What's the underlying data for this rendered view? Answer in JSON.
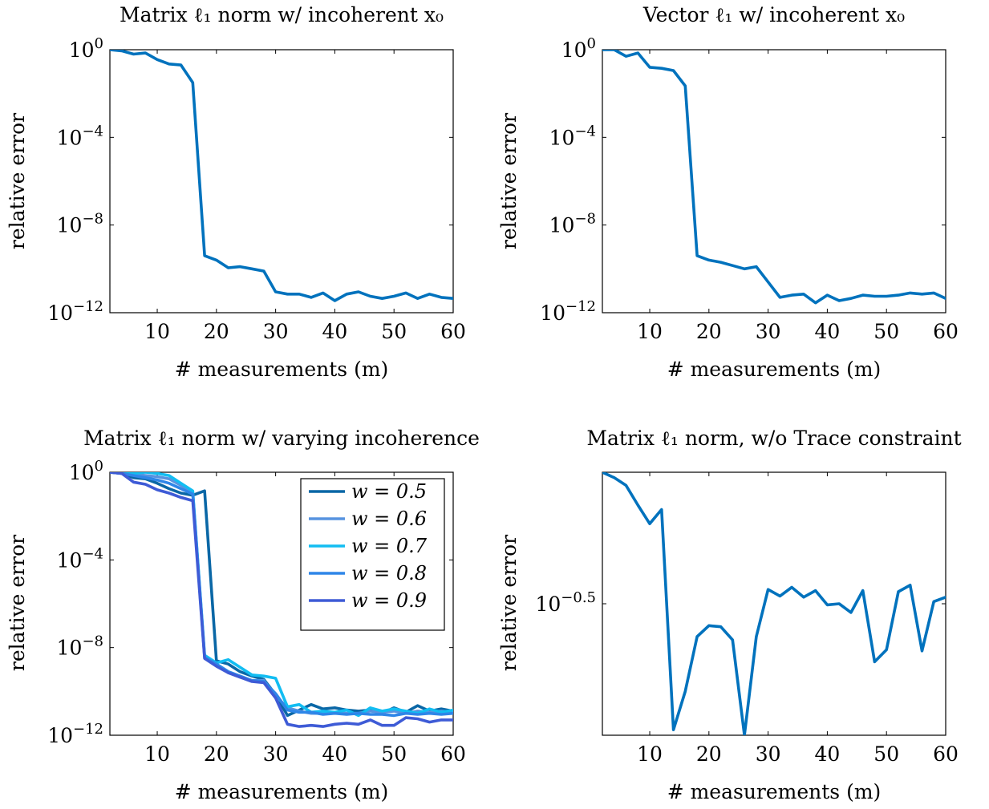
{
  "chart_data": [
    {
      "type": "line",
      "title": "Matrix ℓ₁ norm w/ incoherent x₀",
      "xlabel": "# measurements (m)",
      "ylabel": "relative error",
      "xlim": [
        2,
        60
      ],
      "ylim_log10": [
        -12,
        0
      ],
      "yscale": "log",
      "x_ticks": [
        10,
        20,
        30,
        40,
        50,
        60
      ],
      "y_ticks": [
        {
          "exp": 0,
          "label": "10^0"
        },
        {
          "exp": -4,
          "label": "10^-4"
        },
        {
          "exp": -8,
          "label": "10^-8"
        },
        {
          "exp": -12,
          "label": "10^-12"
        }
      ],
      "grid": false,
      "series": [
        {
          "color": "#0072BD",
          "x": [
            2,
            4,
            6,
            8,
            10,
            12,
            14,
            16,
            18,
            20,
            22,
            24,
            26,
            28,
            30,
            32,
            34,
            36,
            38,
            40,
            42,
            44,
            46,
            48,
            50,
            52,
            54,
            56,
            58,
            60
          ],
          "log10_y": [
            0,
            -0.05,
            -0.2,
            -0.15,
            -0.45,
            -0.65,
            -0.7,
            -1.5,
            -9.4,
            -9.6,
            -9.95,
            -9.9,
            -10.0,
            -10.1,
            -11.05,
            -11.15,
            -11.15,
            -11.3,
            -11.1,
            -11.45,
            -11.15,
            -11.05,
            -11.25,
            -11.35,
            -11.25,
            -11.1,
            -11.35,
            -11.15,
            -11.3,
            -11.35
          ]
        }
      ]
    },
    {
      "type": "line",
      "title": "Vector ℓ₁ w/ incoherent x₀",
      "xlabel": "# measurements (m)",
      "ylabel": "relative error",
      "xlim": [
        2,
        60
      ],
      "ylim_log10": [
        -12,
        0
      ],
      "yscale": "log",
      "x_ticks": [
        10,
        20,
        30,
        40,
        50,
        60
      ],
      "y_ticks": [
        {
          "exp": 0,
          "label": "10^0"
        },
        {
          "exp": -4,
          "label": "10^-4"
        },
        {
          "exp": -8,
          "label": "10^-8"
        },
        {
          "exp": -12,
          "label": "10^-12"
        }
      ],
      "grid": false,
      "series": [
        {
          "color": "#0072BD",
          "x": [
            2,
            4,
            6,
            8,
            10,
            12,
            14,
            16,
            18,
            20,
            22,
            24,
            26,
            28,
            30,
            32,
            34,
            36,
            38,
            40,
            42,
            44,
            46,
            48,
            50,
            52,
            54,
            56,
            58,
            60
          ],
          "log10_y": [
            0,
            0,
            -0.3,
            -0.15,
            -0.8,
            -0.85,
            -0.95,
            -1.65,
            -9.4,
            -9.6,
            -9.7,
            -9.85,
            -10.0,
            -9.9,
            -10.6,
            -11.3,
            -11.2,
            -11.15,
            -11.55,
            -11.2,
            -11.45,
            -11.35,
            -11.2,
            -11.25,
            -11.25,
            -11.2,
            -11.1,
            -11.15,
            -11.1,
            -11.35
          ]
        }
      ]
    },
    {
      "type": "line",
      "title": "Matrix ℓ₁ norm w/ varying incoherence",
      "xlabel": "# measurements (m)",
      "ylabel": "relative error",
      "xlim": [
        2,
        60
      ],
      "ylim_log10": [
        -12,
        0
      ],
      "yscale": "log",
      "x_ticks": [
        10,
        20,
        30,
        40,
        50,
        60
      ],
      "y_ticks": [
        {
          "exp": 0,
          "label": "10^0"
        },
        {
          "exp": -4,
          "label": "10^-4"
        },
        {
          "exp": -8,
          "label": "10^-8"
        },
        {
          "exp": -12,
          "label": "10^-12"
        }
      ],
      "grid": false,
      "legend_position": "top-right",
      "series": [
        {
          "name": "w = 0.5",
          "color": "#0A67A6",
          "x": [
            2,
            4,
            6,
            8,
            10,
            12,
            14,
            16,
            18,
            20,
            22,
            24,
            26,
            28,
            30,
            32,
            34,
            36,
            38,
            40,
            42,
            44,
            46,
            48,
            50,
            52,
            54,
            56,
            58,
            60
          ],
          "log10_y": [
            0,
            -0.05,
            -0.25,
            -0.3,
            -0.5,
            -0.75,
            -0.95,
            -1.05,
            -0.85,
            -8.6,
            -8.75,
            -9.1,
            -9.3,
            -9.45,
            -10.15,
            -11.1,
            -10.85,
            -10.6,
            -10.8,
            -10.75,
            -10.85,
            -10.9,
            -10.85,
            -11.0,
            -10.75,
            -10.95,
            -10.65,
            -10.9,
            -10.8,
            -10.9
          ]
        },
        {
          "name": "w = 0.6",
          "color": "#5793E0",
          "x": [
            2,
            4,
            6,
            8,
            10,
            12,
            14,
            16,
            18,
            20,
            22,
            24,
            26,
            28,
            30,
            32,
            34,
            36,
            38,
            40,
            42,
            44,
            46,
            48,
            50,
            52,
            54,
            56,
            58,
            60
          ],
          "log10_y": [
            0,
            -0.05,
            -0.1,
            -0.15,
            -0.2,
            -0.3,
            -0.6,
            -0.9,
            -8.4,
            -8.75,
            -9.15,
            -9.35,
            -9.5,
            -9.5,
            -10.2,
            -10.75,
            -10.9,
            -11.0,
            -11.0,
            -10.95,
            -11.0,
            -11.0,
            -10.9,
            -10.95,
            -10.9,
            -11.0,
            -10.9,
            -10.95,
            -10.9,
            -10.95
          ]
        },
        {
          "name": "w = 0.7",
          "color": "#12BDF2",
          "x": [
            2,
            4,
            6,
            8,
            10,
            12,
            14,
            16,
            18,
            20,
            22,
            24,
            26,
            28,
            30,
            32,
            34,
            36,
            38,
            40,
            42,
            44,
            46,
            48,
            50,
            52,
            54,
            56,
            58,
            60
          ],
          "log10_y": [
            0,
            0,
            -0.05,
            0,
            -0.05,
            -0.15,
            -0.5,
            -0.85,
            -8.35,
            -8.7,
            -8.55,
            -8.9,
            -9.25,
            -9.3,
            -9.4,
            -10.7,
            -10.6,
            -10.95,
            -10.9,
            -10.95,
            -10.85,
            -11.1,
            -10.75,
            -10.9,
            -10.8,
            -10.9,
            -11.0,
            -10.8,
            -10.95,
            -10.85
          ]
        },
        {
          "name": "w = 0.8",
          "color": "#2E86E8",
          "x": [
            2,
            4,
            6,
            8,
            10,
            12,
            14,
            16,
            18,
            20,
            22,
            24,
            26,
            28,
            30,
            32,
            34,
            36,
            38,
            40,
            42,
            44,
            46,
            48,
            50,
            52,
            54,
            56,
            58,
            60
          ],
          "log10_y": [
            0,
            -0.05,
            -0.15,
            -0.25,
            -0.35,
            -0.5,
            -0.75,
            -1.0,
            -8.45,
            -8.75,
            -9.1,
            -9.3,
            -9.5,
            -9.55,
            -10.1,
            -10.85,
            -10.95,
            -10.95,
            -11.05,
            -11.0,
            -11.05,
            -11.0,
            -11.05,
            -11.05,
            -11.1,
            -11.0,
            -11.05,
            -11.0,
            -11.05,
            -11.0
          ]
        },
        {
          "name": "w = 0.9",
          "color": "#3E5BD6",
          "x": [
            2,
            4,
            6,
            8,
            10,
            12,
            14,
            16,
            18,
            20,
            22,
            24,
            26,
            28,
            30,
            32,
            34,
            36,
            38,
            40,
            42,
            44,
            46,
            48,
            50,
            52,
            54,
            56,
            58,
            60
          ],
          "log10_y": [
            0,
            -0.05,
            -0.45,
            -0.55,
            -0.8,
            -0.95,
            -1.15,
            -1.3,
            -8.5,
            -8.85,
            -9.15,
            -9.35,
            -9.55,
            -9.6,
            -10.3,
            -11.5,
            -11.6,
            -11.55,
            -11.6,
            -11.5,
            -11.45,
            -11.5,
            -11.3,
            -11.55,
            -11.55,
            -11.2,
            -11.25,
            -11.4,
            -11.3,
            -11.3
          ]
        }
      ]
    },
    {
      "type": "line",
      "title": "Matrix ℓ₁ norm, w/o Trace constraint",
      "xlabel": "# measurements (m)",
      "ylabel": "relative error",
      "xlim": [
        2,
        60
      ],
      "ylim_log10": [
        -0.62,
        -0.38
      ],
      "yscale": "log",
      "x_ticks": [
        10,
        20,
        30,
        40,
        50,
        60
      ],
      "y_ticks": [
        {
          "exp": -0.5,
          "label": "10^-0.5"
        }
      ],
      "grid": false,
      "series": [
        {
          "color": "#0072BD",
          "x": [
            2,
            4,
            6,
            8,
            10,
            12,
            14,
            16,
            18,
            20,
            22,
            24,
            26,
            28,
            30,
            32,
            34,
            36,
            38,
            40,
            42,
            44,
            46,
            48,
            50,
            52,
            54,
            56,
            58,
            60
          ],
          "log10_y": [
            -0.38,
            -0.385,
            -0.392,
            -0.41,
            -0.427,
            -0.414,
            -0.615,
            -0.58,
            -0.53,
            -0.52,
            -0.521,
            -0.533,
            -0.62,
            -0.53,
            -0.487,
            -0.493,
            -0.485,
            -0.494,
            -0.488,
            -0.501,
            -0.5,
            -0.508,
            -0.488,
            -0.553,
            -0.542,
            -0.489,
            -0.483,
            -0.543,
            -0.498,
            -0.494
          ]
        }
      ]
    }
  ]
}
